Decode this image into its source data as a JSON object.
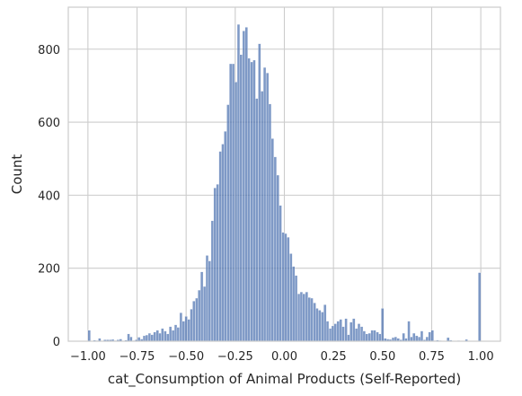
{
  "chart_data": {
    "type": "bar",
    "subtype": "histogram",
    "xlabel": "cat_Consumption of Animal Products (Self-Reported)",
    "ylabel": "Count",
    "xlim": [
      -1.1,
      1.1
    ],
    "ylim": [
      0,
      915
    ],
    "xticks": [
      -1.0,
      -0.75,
      -0.5,
      -0.25,
      0.0,
      0.25,
      0.5,
      0.75,
      1.0
    ],
    "xtick_labels": [
      "−1.00",
      "−0.75",
      "−0.50",
      "−0.25",
      "0.00",
      "0.25",
      "0.50",
      "0.75",
      "1.00"
    ],
    "yticks": [
      0,
      200,
      400,
      600,
      800
    ],
    "ytick_labels": [
      "0",
      "200",
      "400",
      "600",
      "800"
    ],
    "grid": true,
    "bar_color": "#4c72b0",
    "bin_width": 0.01333,
    "bins": [
      {
        "x": -1.0,
        "count": 30
      },
      {
        "x": -0.973,
        "count": 3
      },
      {
        "x": -0.96,
        "count": 2
      },
      {
        "x": -0.947,
        "count": 8
      },
      {
        "x": -0.933,
        "count": 1
      },
      {
        "x": -0.92,
        "count": 4
      },
      {
        "x": -0.907,
        "count": 4
      },
      {
        "x": -0.893,
        "count": 4
      },
      {
        "x": -0.88,
        "count": 5
      },
      {
        "x": -0.867,
        "count": 2
      },
      {
        "x": -0.853,
        "count": 4
      },
      {
        "x": -0.84,
        "count": 6
      },
      {
        "x": -0.827,
        "count": 1
      },
      {
        "x": -0.813,
        "count": 3
      },
      {
        "x": -0.8,
        "count": 20
      },
      {
        "x": -0.787,
        "count": 12
      },
      {
        "x": -0.773,
        "count": 2
      },
      {
        "x": -0.76,
        "count": 4
      },
      {
        "x": -0.747,
        "count": 11
      },
      {
        "x": -0.733,
        "count": 6
      },
      {
        "x": -0.72,
        "count": 15
      },
      {
        "x": -0.707,
        "count": 17
      },
      {
        "x": -0.693,
        "count": 22
      },
      {
        "x": -0.68,
        "count": 18
      },
      {
        "x": -0.667,
        "count": 25
      },
      {
        "x": -0.653,
        "count": 30
      },
      {
        "x": -0.64,
        "count": 22
      },
      {
        "x": -0.627,
        "count": 35
      },
      {
        "x": -0.613,
        "count": 28
      },
      {
        "x": -0.6,
        "count": 20
      },
      {
        "x": -0.587,
        "count": 40
      },
      {
        "x": -0.573,
        "count": 30
      },
      {
        "x": -0.56,
        "count": 45
      },
      {
        "x": -0.547,
        "count": 38
      },
      {
        "x": -0.533,
        "count": 78
      },
      {
        "x": -0.52,
        "count": 55
      },
      {
        "x": -0.507,
        "count": 68
      },
      {
        "x": -0.493,
        "count": 60
      },
      {
        "x": -0.48,
        "count": 88
      },
      {
        "x": -0.467,
        "count": 110
      },
      {
        "x": -0.453,
        "count": 118
      },
      {
        "x": -0.44,
        "count": 140
      },
      {
        "x": -0.427,
        "count": 190
      },
      {
        "x": -0.413,
        "count": 150
      },
      {
        "x": -0.4,
        "count": 235
      },
      {
        "x": -0.387,
        "count": 220
      },
      {
        "x": -0.373,
        "count": 330
      },
      {
        "x": -0.36,
        "count": 420
      },
      {
        "x": -0.347,
        "count": 430
      },
      {
        "x": -0.333,
        "count": 520
      },
      {
        "x": -0.32,
        "count": 540
      },
      {
        "x": -0.307,
        "count": 575
      },
      {
        "x": -0.293,
        "count": 648
      },
      {
        "x": -0.28,
        "count": 760
      },
      {
        "x": -0.267,
        "count": 760
      },
      {
        "x": -0.253,
        "count": 710
      },
      {
        "x": -0.24,
        "count": 868
      },
      {
        "x": -0.227,
        "count": 785
      },
      {
        "x": -0.213,
        "count": 850
      },
      {
        "x": -0.2,
        "count": 860
      },
      {
        "x": -0.187,
        "count": 775
      },
      {
        "x": -0.173,
        "count": 765
      },
      {
        "x": -0.16,
        "count": 770
      },
      {
        "x": -0.147,
        "count": 665
      },
      {
        "x": -0.133,
        "count": 815
      },
      {
        "x": -0.12,
        "count": 685
      },
      {
        "x": -0.107,
        "count": 750
      },
      {
        "x": -0.093,
        "count": 735
      },
      {
        "x": -0.08,
        "count": 650
      },
      {
        "x": -0.067,
        "count": 555
      },
      {
        "x": -0.053,
        "count": 505
      },
      {
        "x": -0.04,
        "count": 455
      },
      {
        "x": -0.027,
        "count": 372
      },
      {
        "x": -0.013,
        "count": 298
      },
      {
        "x": 0.0,
        "count": 295
      },
      {
        "x": 0.013,
        "count": 285
      },
      {
        "x": 0.027,
        "count": 240
      },
      {
        "x": 0.04,
        "count": 205
      },
      {
        "x": 0.053,
        "count": 180
      },
      {
        "x": 0.067,
        "count": 130
      },
      {
        "x": 0.08,
        "count": 135
      },
      {
        "x": 0.093,
        "count": 130
      },
      {
        "x": 0.107,
        "count": 135
      },
      {
        "x": 0.12,
        "count": 120
      },
      {
        "x": 0.133,
        "count": 118
      },
      {
        "x": 0.147,
        "count": 105
      },
      {
        "x": 0.16,
        "count": 90
      },
      {
        "x": 0.173,
        "count": 85
      },
      {
        "x": 0.187,
        "count": 80
      },
      {
        "x": 0.2,
        "count": 100
      },
      {
        "x": 0.213,
        "count": 55
      },
      {
        "x": 0.227,
        "count": 35
      },
      {
        "x": 0.24,
        "count": 42
      },
      {
        "x": 0.253,
        "count": 48
      },
      {
        "x": 0.267,
        "count": 55
      },
      {
        "x": 0.28,
        "count": 60
      },
      {
        "x": 0.293,
        "count": 40
      },
      {
        "x": 0.307,
        "count": 62
      },
      {
        "x": 0.32,
        "count": 18
      },
      {
        "x": 0.333,
        "count": 52
      },
      {
        "x": 0.347,
        "count": 62
      },
      {
        "x": 0.36,
        "count": 35
      },
      {
        "x": 0.373,
        "count": 48
      },
      {
        "x": 0.387,
        "count": 40
      },
      {
        "x": 0.4,
        "count": 28
      },
      {
        "x": 0.413,
        "count": 20
      },
      {
        "x": 0.427,
        "count": 22
      },
      {
        "x": 0.44,
        "count": 30
      },
      {
        "x": 0.453,
        "count": 30
      },
      {
        "x": 0.467,
        "count": 25
      },
      {
        "x": 0.48,
        "count": 20
      },
      {
        "x": 0.493,
        "count": 90
      },
      {
        "x": 0.507,
        "count": 8
      },
      {
        "x": 0.52,
        "count": 6
      },
      {
        "x": 0.533,
        "count": 5
      },
      {
        "x": 0.547,
        "count": 10
      },
      {
        "x": 0.56,
        "count": 12
      },
      {
        "x": 0.573,
        "count": 8
      },
      {
        "x": 0.587,
        "count": 4
      },
      {
        "x": 0.6,
        "count": 22
      },
      {
        "x": 0.613,
        "count": 8
      },
      {
        "x": 0.627,
        "count": 55
      },
      {
        "x": 0.64,
        "count": 12
      },
      {
        "x": 0.653,
        "count": 22
      },
      {
        "x": 0.667,
        "count": 15
      },
      {
        "x": 0.68,
        "count": 12
      },
      {
        "x": 0.693,
        "count": 28
      },
      {
        "x": 0.707,
        "count": 4
      },
      {
        "x": 0.72,
        "count": 12
      },
      {
        "x": 0.733,
        "count": 25
      },
      {
        "x": 0.747,
        "count": 30
      },
      {
        "x": 0.76,
        "count": 2
      },
      {
        "x": 0.773,
        "count": 3
      },
      {
        "x": 0.787,
        "count": 2
      },
      {
        "x": 0.827,
        "count": 10
      },
      {
        "x": 0.84,
        "count": 3
      },
      {
        "x": 0.88,
        "count": 2
      },
      {
        "x": 0.92,
        "count": 5
      },
      {
        "x": 0.947,
        "count": 1
      },
      {
        "x": 0.987,
        "count": 188
      }
    ]
  }
}
